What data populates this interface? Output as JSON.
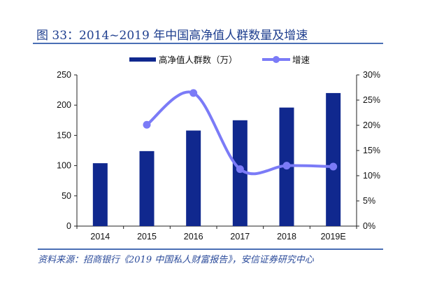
{
  "title": "图 33：2014~2019 年中国高净值人群数量及增速",
  "source": "资料来源：招商银行《2019 中国私人财富报告》，安信证券研究中心",
  "chart_data": {
    "type": "bar+line",
    "categories": [
      "2014",
      "2015",
      "2016",
      "2017",
      "2018",
      "2019E"
    ],
    "series": [
      {
        "name": "高净值人群数（万）",
        "type": "bar",
        "axis": "left",
        "color": "#10288e",
        "values": [
          104,
          124,
          158,
          175,
          196,
          220
        ]
      },
      {
        "name": "增速",
        "type": "line",
        "axis": "right",
        "color": "#7b7bf7",
        "values": [
          null,
          20.1,
          26.4,
          11.3,
          12.0,
          11.8
        ]
      }
    ],
    "ylim_left": [
      0,
      250
    ],
    "yticks_left": [
      "0",
      "50",
      "100",
      "150",
      "200",
      "250"
    ],
    "ylim_right": [
      0,
      30
    ],
    "yticks_right": [
      "0%",
      "5%",
      "10%",
      "15%",
      "20%",
      "25%",
      "30%"
    ],
    "legend": "top",
    "grid": false
  }
}
